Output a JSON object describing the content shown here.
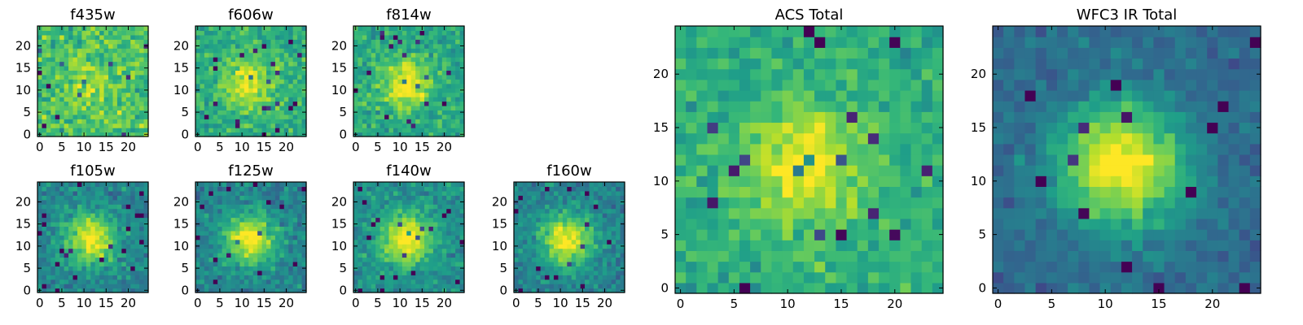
{
  "chart_data": {
    "type": "heatmap",
    "colormap": "viridis",
    "value_range": [
      0,
      1
    ],
    "panels": [
      {
        "id": "f435w",
        "title": "f435w",
        "size": 25,
        "xlim": [
          -0.5,
          24.5
        ],
        "ylim": [
          -0.5,
          24.5
        ],
        "xticks": [
          0,
          5,
          10,
          15,
          20
        ],
        "yticks": [
          0,
          5,
          10,
          15,
          20
        ],
        "signal": 0.15,
        "noise": 0.55,
        "base": 0.7,
        "seed": 11
      },
      {
        "id": "f606w",
        "title": "f606w",
        "size": 25,
        "xlim": [
          -0.5,
          24.5
        ],
        "ylim": [
          -0.5,
          24.5
        ],
        "xticks": [
          0,
          5,
          10,
          15,
          20
        ],
        "yticks": [
          0,
          5,
          10,
          15,
          20
        ],
        "signal": 0.35,
        "noise": 0.45,
        "base": 0.62,
        "seed": 23
      },
      {
        "id": "f814w",
        "title": "f814w",
        "size": 25,
        "xlim": [
          -0.5,
          24.5
        ],
        "ylim": [
          -0.5,
          24.5
        ],
        "xticks": [
          0,
          5,
          10,
          15,
          20
        ],
        "yticks": [
          0,
          5,
          10,
          15,
          20
        ],
        "signal": 0.4,
        "noise": 0.45,
        "base": 0.6,
        "seed": 37
      },
      {
        "id": "f105w",
        "title": "f105w",
        "size": 25,
        "xlim": [
          -0.5,
          24.5
        ],
        "ylim": [
          -0.5,
          24.5
        ],
        "xticks": [
          0,
          5,
          10,
          15,
          20
        ],
        "yticks": [
          0,
          5,
          10,
          15,
          20
        ],
        "signal": 0.55,
        "noise": 0.42,
        "base": 0.45,
        "seed": 41
      },
      {
        "id": "f125w",
        "title": "f125w",
        "size": 25,
        "xlim": [
          -0.5,
          24.5
        ],
        "ylim": [
          -0.5,
          24.5
        ],
        "xticks": [
          0,
          5,
          10,
          15,
          20
        ],
        "yticks": [
          0,
          5,
          10,
          15,
          20
        ],
        "signal": 0.55,
        "noise": 0.42,
        "base": 0.45,
        "seed": 53
      },
      {
        "id": "f140w",
        "title": "f140w",
        "size": 25,
        "xlim": [
          -0.5,
          24.5
        ],
        "ylim": [
          -0.5,
          24.5
        ],
        "xticks": [
          0,
          5,
          10,
          15,
          20
        ],
        "yticks": [
          0,
          5,
          10,
          15,
          20
        ],
        "signal": 0.55,
        "noise": 0.4,
        "base": 0.5,
        "seed": 67
      },
      {
        "id": "f160w",
        "title": "f160w",
        "size": 25,
        "xlim": [
          -0.5,
          24.5
        ],
        "ylim": [
          -0.5,
          24.5
        ],
        "xticks": [
          0,
          5,
          10,
          15,
          20
        ],
        "yticks": [
          0,
          5,
          10,
          15,
          20
        ],
        "signal": 0.55,
        "noise": 0.4,
        "base": 0.45,
        "seed": 79
      },
      {
        "id": "acs-total",
        "title": "ACS Total",
        "size": 25,
        "xlim": [
          -0.5,
          24.5
        ],
        "ylim": [
          -0.5,
          24.5
        ],
        "xticks": [
          0,
          5,
          10,
          15,
          20
        ],
        "yticks": [
          0,
          5,
          10,
          15,
          20
        ],
        "signal": 0.35,
        "noise": 0.4,
        "base": 0.62,
        "seed": 97
      },
      {
        "id": "wfc3-ir-total",
        "title": "WFC3 IR Total",
        "size": 25,
        "xlim": [
          -0.5,
          24.5
        ],
        "ylim": [
          -0.5,
          24.5
        ],
        "xticks": [
          0,
          5,
          10,
          15,
          20
        ],
        "yticks": [
          0,
          5,
          10,
          15,
          20
        ],
        "signal": 0.7,
        "noise": 0.3,
        "base": 0.35,
        "seed": 113
      }
    ]
  }
}
